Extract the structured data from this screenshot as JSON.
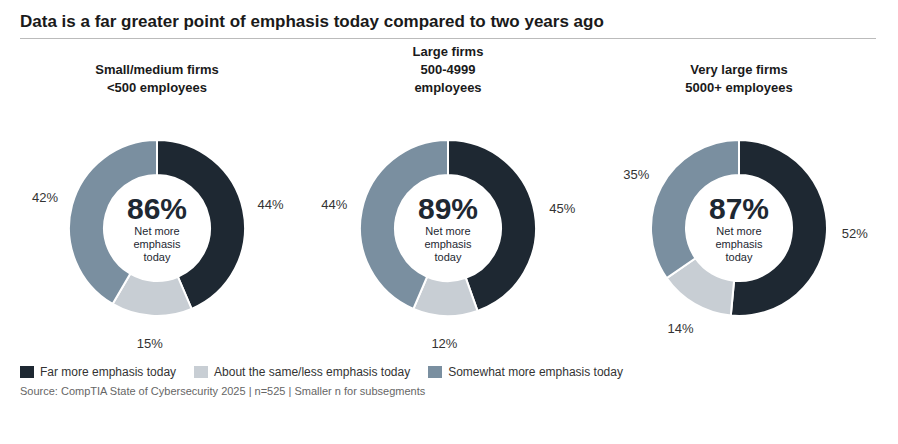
{
  "title": "Data is a far greater point of emphasis today compared to two years ago",
  "annotations": [
    "Source: CompTIA State of Cybersecurity 2025 | n=525 | Smaller n for subsegments"
  ],
  "legend": "lower left",
  "chart_data": [
    {
      "type": "pie",
      "title": "Small/medium firms\n<500 employees",
      "categories": [
        "Far more emphasis today",
        "About the same/less emphasis today",
        "Somewhat more emphasis today"
      ],
      "values": [
        44,
        15,
        42
      ],
      "value_labels": [
        "44%",
        "15%",
        "42%"
      ],
      "colors": [
        "#1e2832",
        "#c8ced4",
        "#7a8fa0"
      ],
      "data_labels": true,
      "annotations": [
        "86%",
        "Net more\nemphasis\ntoday"
      ]
    },
    {
      "type": "pie",
      "title": "Large firms\n500-4999\nemployees",
      "categories": [
        "Far more emphasis today",
        "About the same/less emphasis today",
        "Somewhat more emphasis today"
      ],
      "values": [
        45,
        12,
        44
      ],
      "value_labels": [
        "45%",
        "12%",
        "44%"
      ],
      "colors": [
        "#1e2832",
        "#c8ced4",
        "#7a8fa0"
      ],
      "data_labels": true,
      "annotations": [
        "89%",
        "Net more\nemphasis\ntoday"
      ]
    },
    {
      "type": "pie",
      "title": "Very large firms\n5000+ employees",
      "categories": [
        "Far more emphasis today",
        "About the same/less emphasis today",
        "Somewhat more emphasis today"
      ],
      "values": [
        52,
        14,
        35
      ],
      "value_labels": [
        "52%",
        "14%",
        "35%"
      ],
      "colors": [
        "#1e2832",
        "#c8ced4",
        "#7a8fa0"
      ],
      "data_labels": true,
      "annotations": [
        "87%",
        "Net more\nemphasis\ntoday"
      ]
    }
  ]
}
